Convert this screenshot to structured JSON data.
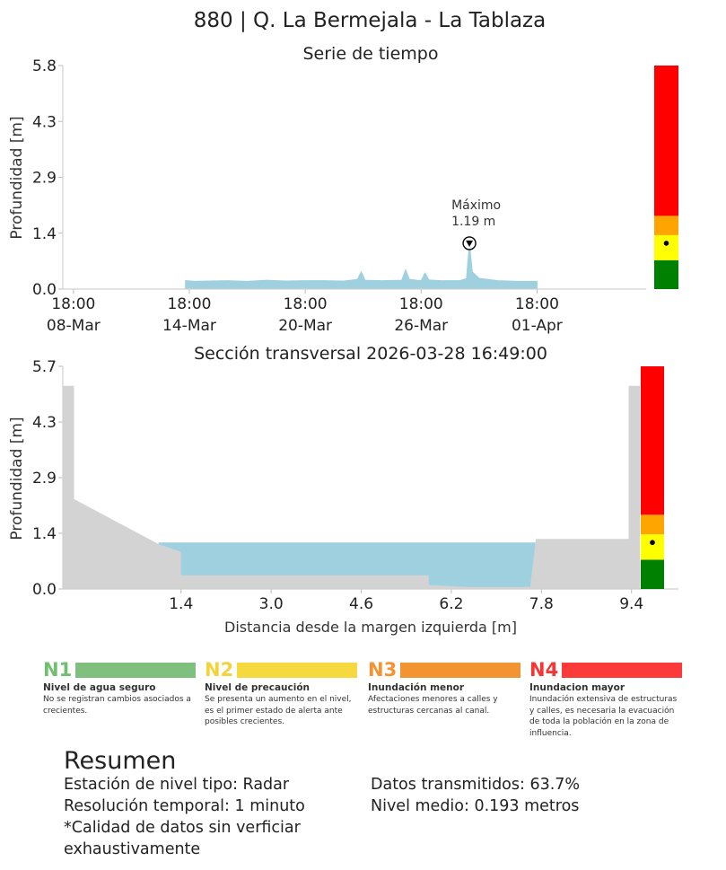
{
  "title": "880 | Q. La Bermejala - La Tablaza",
  "colors": {
    "water": "#9ed0e0",
    "terrain": "#d3d3d3",
    "green": "#008000",
    "yellow": "#ffff00",
    "orange": "#ffa500",
    "red": "#ff0000"
  },
  "chart_data": [
    {
      "type": "area",
      "title": "Serie de tiempo",
      "ylabel": "Profundidad [m]",
      "xlabel": "",
      "yticks": [
        "0.0",
        "1.4",
        "2.9",
        "4.3",
        "5.8"
      ],
      "ylim": [
        0,
        5.8
      ],
      "xlim_days": [
        0,
        24.5
      ],
      "xticks": [
        {
          "pos": 4.0,
          "line1": "18:00",
          "line2": "08-Mar"
        },
        {
          "pos": 10.0,
          "line1": "18:00",
          "line2": "14-Mar"
        },
        {
          "pos": 16.0,
          "line1": "18:00",
          "line2": "20-Mar"
        },
        {
          "pos": 22.0,
          "line1": "18:00",
          "line2": "26-Mar"
        },
        {
          "pos": 28.0,
          "line1": "18:00",
          "line2": "01-Apr"
        }
      ],
      "series_points": [
        [
          9.8,
          0.22
        ],
        [
          10.3,
          0.2
        ],
        [
          11,
          0.21
        ],
        [
          12,
          0.22
        ],
        [
          13,
          0.2
        ],
        [
          14,
          0.23
        ],
        [
          15,
          0.21
        ],
        [
          16,
          0.22
        ],
        [
          17,
          0.22
        ],
        [
          18,
          0.21
        ],
        [
          18.7,
          0.25
        ],
        [
          18.9,
          0.45
        ],
        [
          19.1,
          0.23
        ],
        [
          20,
          0.22
        ],
        [
          21,
          0.23
        ],
        [
          21.2,
          0.5
        ],
        [
          21.4,
          0.25
        ],
        [
          22,
          0.22
        ],
        [
          22.2,
          0.42
        ],
        [
          22.4,
          0.24
        ],
        [
          23,
          0.22
        ],
        [
          24,
          0.22
        ],
        [
          24.35,
          0.27
        ],
        [
          24.5,
          1.19
        ],
        [
          24.65,
          0.45
        ],
        [
          25,
          0.28
        ],
        [
          26,
          0.22
        ],
        [
          27,
          0.2
        ],
        [
          28,
          0.2
        ]
      ],
      "max_annotation": {
        "label": "Máximo",
        "value": "1.19 m",
        "x": 24.5,
        "y": 1.19
      },
      "level_bar": {
        "green_to": 0.75,
        "yellow_to": 1.4,
        "orange_to": 1.9,
        "red_to": 5.8,
        "current": 1.19
      }
    },
    {
      "type": "area",
      "title": "Sección transversal 2026-03-28 16:49:00",
      "ylabel": "Profundidad [m]",
      "xlabel": "Distancia desde la margen izquierda [m]",
      "yticks": [
        "0.0",
        "1.4",
        "2.9",
        "4.3",
        "5.7"
      ],
      "ylim": [
        0,
        5.7
      ],
      "xlim": [
        -0.7,
        9.5
      ],
      "xticks": [
        "1.4",
        "3.0",
        "4.6",
        "6.2",
        "7.8",
        "9.4"
      ],
      "xtick_values": [
        1.4,
        3.0,
        4.6,
        6.2,
        7.8,
        9.4
      ],
      "water_level": 1.19,
      "terrain_profile": [
        [
          -0.7,
          5.2
        ],
        [
          -0.5,
          5.2
        ],
        [
          -0.5,
          2.3
        ],
        [
          1.0,
          1.15
        ],
        [
          1.4,
          0.95
        ],
        [
          1.4,
          0.35
        ],
        [
          5.8,
          0.35
        ],
        [
          5.8,
          0.1
        ],
        [
          6.5,
          0.05
        ],
        [
          7.6,
          0.05
        ],
        [
          7.7,
          1.28
        ],
        [
          9.35,
          1.28
        ],
        [
          9.35,
          5.2
        ],
        [
          9.55,
          5.2
        ]
      ],
      "level_bar": {
        "green_to": 0.75,
        "yellow_to": 1.4,
        "orange_to": 1.9,
        "red_to": 5.7,
        "current": 1.19
      }
    }
  ],
  "legend": [
    {
      "code": "N1",
      "color": "#7fc07f",
      "code_color": "#6fbf6f",
      "title": "Nivel de agua seguro",
      "desc": "No se registran cambios asociados a crecientes."
    },
    {
      "code": "N2",
      "color": "#f6d93e",
      "code_color": "#f4d23a",
      "title": "Nivel de precaución",
      "desc": "Se presenta un aumento en el nivel, es el primer estado de alerta ante posibles crecientes."
    },
    {
      "code": "N3",
      "color": "#f39331",
      "code_color": "#f39331",
      "title": "Inundación menor",
      "desc": "Afectaciones menores a calles y estructuras cercanas al canal."
    },
    {
      "code": "N4",
      "color": "#fb3a3a",
      "code_color": "#f83535",
      "title": "Inundacion mayor",
      "desc": "Inundación extensiva de estructuras y calles, es necesaria la evacuación de toda la población en la zona de influencia."
    }
  ],
  "summary": {
    "title": "Resumen",
    "left": [
      "Estación de nivel tipo: Radar",
      "Resolución temporal: 1 minuto",
      "*Calidad de datos sin verficiar",
      "exhaustivamente"
    ],
    "right": [
      "Datos transmitidos: 63.7%",
      "Nivel medio: 0.193 metros"
    ]
  }
}
